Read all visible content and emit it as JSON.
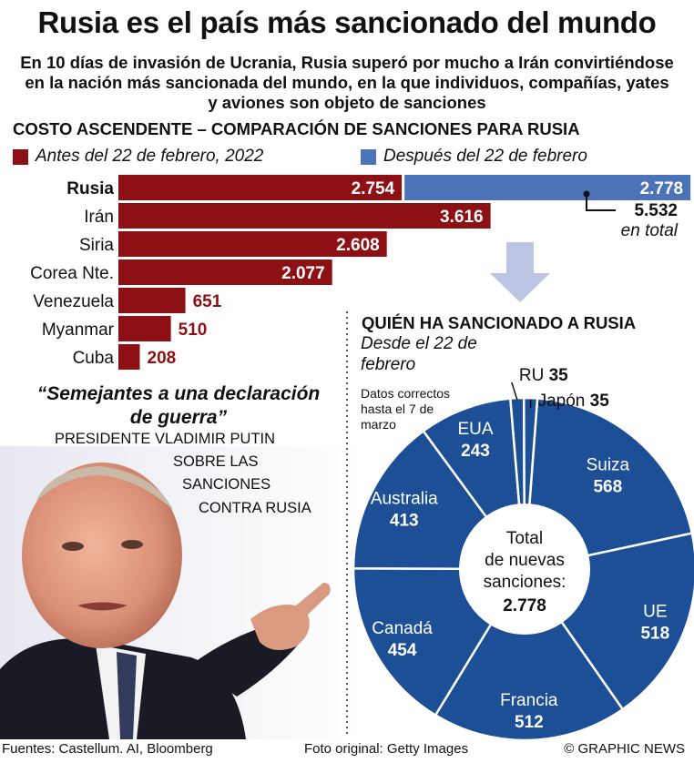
{
  "title": "Rusia es el país más sancionado del mundo",
  "subtitle": "En 10 días de invasión de Ucrania, Rusia superó por mucho a Irán convirtiéndose en la nación más sancionada del mundo, en la que individuos, compañías, yates y aviones son objeto de sanciones",
  "chart_data": [
    {
      "type": "bar",
      "title": "COSTO ASCENDENTE – COMPARACIÓN DE SANCIONES PARA RUSIA",
      "categories": [
        "Rusia",
        "Irán",
        "Siria",
        "Corea Nte.",
        "Venezuela",
        "Myanmar",
        "Cuba"
      ],
      "series": [
        {
          "name": "Antes del 22 de febrero, 2022",
          "color": "#8c1014",
          "values": [
            2754,
            3616,
            2608,
            2077,
            651,
            510,
            208
          ],
          "labels": [
            "2.754",
            "3.616",
            "2.608",
            "2.077",
            "651",
            "510",
            "208"
          ]
        },
        {
          "name": "Después del 22 de febrero",
          "color": "#4c72b8",
          "values": [
            2778,
            null,
            null,
            null,
            null,
            null,
            null
          ],
          "labels": [
            "2.778",
            "",
            "",
            "",
            "",
            "",
            ""
          ]
        }
      ],
      "total_label": "5.532",
      "total_caption": "en total",
      "stacked": true
    },
    {
      "type": "pie",
      "title": "QUIÉN HA SANCIONADO A RUSIA",
      "subtitle": "Desde el 22 de febrero",
      "note": "Datos correctos hasta el 7 de marzo",
      "center_label": [
        "Total",
        "de nuevas",
        "sanciones:"
      ],
      "center_value": "2.778",
      "slices": [
        {
          "label": "Suiza",
          "value": 568,
          "value_label": "568"
        },
        {
          "label": "UE",
          "value": 518,
          "value_label": "518"
        },
        {
          "label": "Francia",
          "value": 512,
          "value_label": "512"
        },
        {
          "label": "Canadá",
          "value": 454,
          "value_label": "454"
        },
        {
          "label": "Australia",
          "value": 413,
          "value_label": "413"
        },
        {
          "label": "EUA",
          "value": 243,
          "value_label": "243"
        },
        {
          "label": "RU",
          "value": 35,
          "value_label": "35"
        },
        {
          "label": "Japón",
          "value": 35,
          "value_label": "35"
        }
      ],
      "color": "#1d4f96"
    }
  ],
  "quote": {
    "text": "“Semejantes a una declaración de guerra”",
    "attribution": [
      "PRESIDENTE VLADIMIR PUTIN",
      "SOBRE LAS",
      "SANCIONES",
      "CONTRA RUSIA"
    ]
  },
  "footer": {
    "sources": "Fuentes: Castellum. AI, Bloomberg",
    "photo_credit": "Foto original: Getty Images",
    "brand": "© GRAPHIC NEWS"
  }
}
